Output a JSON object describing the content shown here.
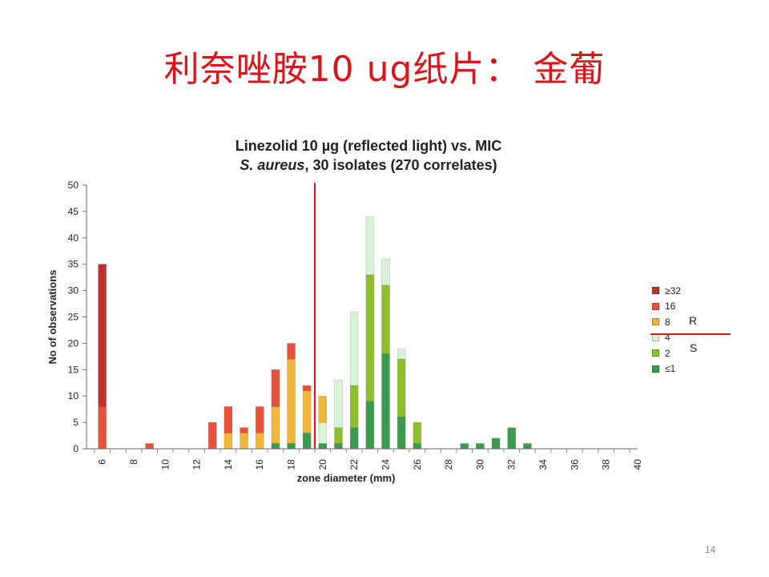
{
  "slide": {
    "title": "利奈唑胺10 ug纸片：  金葡",
    "page_number": "14",
    "r_label": "R",
    "s_label": "S"
  },
  "chart_data": {
    "type": "bar",
    "stacked": true,
    "title_line1": "Linezolid 10 µg (reflected light) vs. MIC",
    "title_line2_italic": "S. aureus",
    "title_line2_rest": ", 30 isolates (270 correlates)",
    "xlabel": "zone diameter (mm)",
    "ylabel": "No of observations",
    "xlim": [
      5,
      40
    ],
    "ylim": [
      0,
      50
    ],
    "x_ticks": [
      6,
      8,
      10,
      12,
      14,
      16,
      18,
      20,
      22,
      24,
      26,
      28,
      30,
      32,
      34,
      36,
      38,
      40
    ],
    "y_ticks": [
      0,
      5,
      10,
      15,
      20,
      25,
      30,
      35,
      40,
      45,
      50
    ],
    "breakpoint_x": 19.5,
    "legend_position": "right",
    "x": [
      6,
      9,
      13,
      14,
      15,
      16,
      17,
      18,
      19,
      20,
      21,
      22,
      23,
      24,
      25,
      26,
      29,
      30,
      31,
      32,
      33
    ],
    "series": [
      {
        "name": "≤1",
        "color": "#3a9a4e",
        "values": [
          0,
          0,
          0,
          0,
          0,
          0,
          1,
          1,
          3,
          1,
          1,
          4,
          9,
          18,
          6,
          1,
          1,
          1,
          2,
          4,
          1
        ]
      },
      {
        "name": "2",
        "color": "#8fbe2e",
        "values": [
          0,
          0,
          0,
          0,
          0,
          0,
          0,
          0,
          0,
          0,
          3,
          8,
          24,
          13,
          11,
          4,
          0,
          0,
          0,
          0,
          0
        ]
      },
      {
        "name": "4",
        "color": "#d9f1d7",
        "values": [
          0,
          0,
          0,
          0,
          0,
          0,
          0,
          0,
          0,
          4,
          9,
          14,
          11,
          5,
          2,
          0,
          0,
          0,
          0,
          0,
          0
        ]
      },
      {
        "name": "8",
        "color": "#f0b63a",
        "values": [
          0,
          0,
          0,
          3,
          3,
          3,
          7,
          16,
          8,
          5,
          0,
          0,
          0,
          0,
          0,
          0,
          0,
          0,
          0,
          0,
          0
        ]
      },
      {
        "name": "16",
        "color": "#e8523a",
        "values": [
          8,
          1,
          5,
          5,
          1,
          5,
          7,
          3,
          1,
          0,
          0,
          0,
          0,
          0,
          0,
          0,
          0,
          0,
          0,
          0,
          0
        ]
      },
      {
        "name": "≥32",
        "color": "#c0332b",
        "values": [
          27,
          0,
          0,
          0,
          0,
          0,
          0,
          0,
          0,
          0,
          0,
          0,
          0,
          0,
          0,
          0,
          0,
          0,
          0,
          0,
          0
        ]
      }
    ],
    "breakpoint_color": "#d9141b"
  }
}
